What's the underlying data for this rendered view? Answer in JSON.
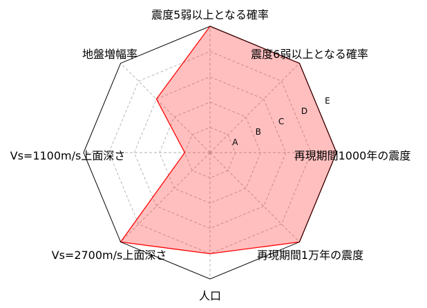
{
  "chart_data": {
    "type": "radar",
    "title": "",
    "axes": [
      "震度5弱以上となる確率",
      "震度6弱以上となる確率",
      "再現期間1000年の震度",
      "再現期間1万年の震度",
      "人口",
      "Vs=2700m/s上面深さ",
      "Vs=1100m/s上面深さ",
      "地盤増幅率"
    ],
    "rings": [
      "A",
      "B",
      "C",
      "D",
      "E"
    ],
    "rmax": 5,
    "values": [
      5,
      5,
      5,
      5,
      4,
      5,
      1,
      3
    ],
    "colors": {
      "fill": "#ff0000",
      "line": "#ff0000",
      "frame": "#000000",
      "grid": "#b0b0b0"
    },
    "grid": true
  }
}
